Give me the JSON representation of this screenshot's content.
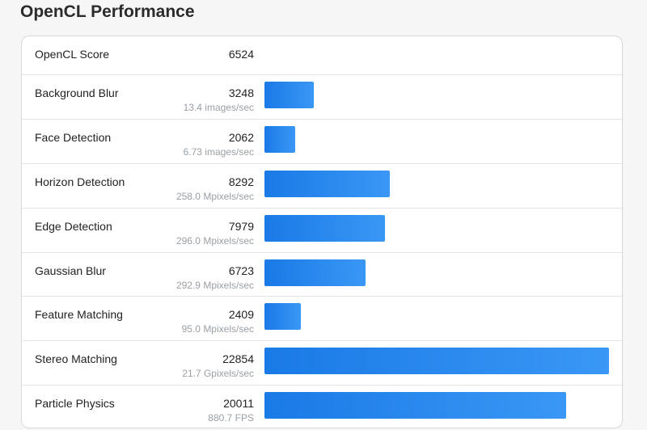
{
  "page": {
    "title": "OpenCL Performance"
  },
  "overall": {
    "name": "OpenCL Score",
    "score": "6524"
  },
  "benchmarks": [
    {
      "name": "Background Blur",
      "score": "3248",
      "rate": "13.4 images/sec",
      "value": 3248
    },
    {
      "name": "Face Detection",
      "score": "2062",
      "rate": "6.73 images/sec",
      "value": 2062
    },
    {
      "name": "Horizon Detection",
      "score": "8292",
      "rate": "258.0 Mpixels/sec",
      "value": 8292
    },
    {
      "name": "Edge Detection",
      "score": "7979",
      "rate": "296.0 Mpixels/sec",
      "value": 7979
    },
    {
      "name": "Gaussian Blur",
      "score": "6723",
      "rate": "292.9 Mpixels/sec",
      "value": 6723
    },
    {
      "name": "Feature Matching",
      "score": "2409",
      "rate": "95.0 Mpixels/sec",
      "value": 2409
    },
    {
      "name": "Stereo Matching",
      "score": "22854",
      "rate": "21.7 Gpixels/sec",
      "value": 22854
    },
    {
      "name": "Particle Physics",
      "score": "20011",
      "rate": "880.7 FPS",
      "value": 20011
    }
  ],
  "bar_max_value": 22854,
  "colors": {
    "bar_start": "#1a7ae6",
    "bar_end": "#3a97f5"
  }
}
